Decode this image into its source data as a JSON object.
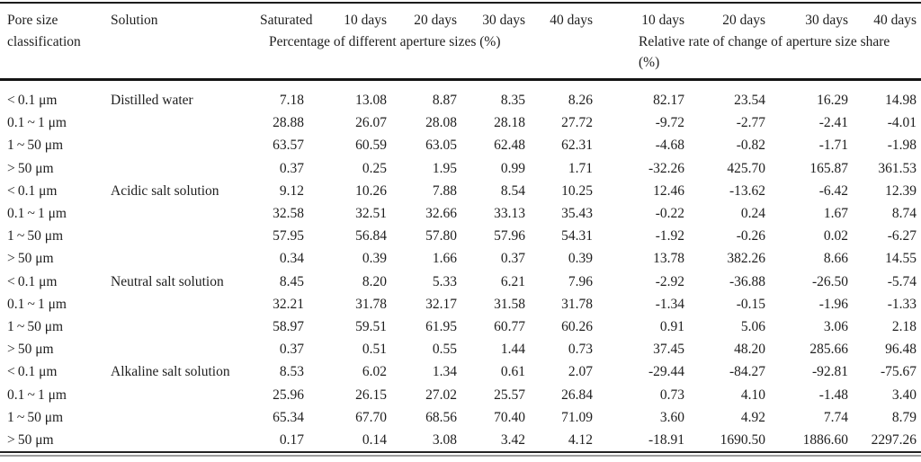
{
  "table": {
    "header": {
      "pore_size": "Pore size classification",
      "solution": "Solution",
      "time_cols": [
        "Saturated",
        "10 days",
        "20 days",
        "30 days",
        "40 days",
        "10 days",
        "20 days",
        "30 days",
        "40 days"
      ],
      "group1_label": "Percentage of different aperture sizes (%)",
      "group2_label": "Relative rate of change of aperture size share (%)"
    },
    "rows": [
      {
        "pore": "< 0.1 μm",
        "solution": "Distilled water",
        "values": [
          "7.18",
          "13.08",
          "8.87",
          "8.35",
          "8.26",
          "82.17",
          "23.54",
          "16.29",
          "14.98"
        ]
      },
      {
        "pore": "0.1 ~ 1 μm",
        "solution": "",
        "values": [
          "28.88",
          "26.07",
          "28.08",
          "28.18",
          "27.72",
          "-9.72",
          "-2.77",
          "-2.41",
          "-4.01"
        ]
      },
      {
        "pore": "1 ~ 50 μm",
        "solution": "",
        "values": [
          "63.57",
          "60.59",
          "63.05",
          "62.48",
          "62.31",
          "-4.68",
          "-0.82",
          "-1.71",
          "-1.98"
        ]
      },
      {
        "pore": "> 50 μm",
        "solution": "",
        "values": [
          "0.37",
          "0.25",
          "1.95",
          "0.99",
          "1.71",
          "-32.26",
          "425.70",
          "165.87",
          "361.53"
        ]
      },
      {
        "pore": "< 0.1 μm",
        "solution": "Acidic salt solution",
        "values": [
          "9.12",
          "10.26",
          "7.88",
          "8.54",
          "10.25",
          "12.46",
          "-13.62",
          "-6.42",
          "12.39"
        ]
      },
      {
        "pore": "0.1 ~ 1 μm",
        "solution": "",
        "values": [
          "32.58",
          "32.51",
          "32.66",
          "33.13",
          "35.43",
          "-0.22",
          "0.24",
          "1.67",
          "8.74"
        ]
      },
      {
        "pore": "1 ~ 50 μm",
        "solution": "",
        "values": [
          "57.95",
          "56.84",
          "57.80",
          "57.96",
          "54.31",
          "-1.92",
          "-0.26",
          "0.02",
          "-6.27"
        ]
      },
      {
        "pore": "> 50 μm",
        "solution": "",
        "values": [
          "0.34",
          "0.39",
          "1.66",
          "0.37",
          "0.39",
          "13.78",
          "382.26",
          "8.66",
          "14.55"
        ]
      },
      {
        "pore": "< 0.1 μm",
        "solution": "Neutral salt solution",
        "values": [
          "8.45",
          "8.20",
          "5.33",
          "6.21",
          "7.96",
          "-2.92",
          "-36.88",
          "-26.50",
          "-5.74"
        ]
      },
      {
        "pore": "0.1 ~ 1 μm",
        "solution": "",
        "values": [
          "32.21",
          "31.78",
          "32.17",
          "31.58",
          "31.78",
          "-1.34",
          "-0.15",
          "-1.96",
          "-1.33"
        ]
      },
      {
        "pore": "1 ~ 50 μm",
        "solution": "",
        "values": [
          "58.97",
          "59.51",
          "61.95",
          "60.77",
          "60.26",
          "0.91",
          "5.06",
          "3.06",
          "2.18"
        ]
      },
      {
        "pore": "> 50 μm",
        "solution": "",
        "values": [
          "0.37",
          "0.51",
          "0.55",
          "1.44",
          "0.73",
          "37.45",
          "48.20",
          "285.66",
          "96.48"
        ]
      },
      {
        "pore": "< 0.1 μm",
        "solution": "Alkaline salt solution",
        "values": [
          "8.53",
          "6.02",
          "1.34",
          "0.61",
          "2.07",
          "-29.44",
          "-84.27",
          "-92.81",
          "-75.67"
        ]
      },
      {
        "pore": "0.1 ~ 1 μm",
        "solution": "",
        "values": [
          "25.96",
          "26.15",
          "27.02",
          "25.57",
          "26.84",
          "0.73",
          "4.10",
          "-1.48",
          "3.40"
        ]
      },
      {
        "pore": "1 ~ 50 μm",
        "solution": "",
        "values": [
          "65.34",
          "67.70",
          "68.56",
          "70.40",
          "71.09",
          "3.60",
          "4.92",
          "7.74",
          "8.79"
        ]
      },
      {
        "pore": "> 50 μm",
        "solution": "",
        "values": [
          "0.17",
          "0.14",
          "3.08",
          "3.42",
          "4.12",
          "-18.91",
          "1690.50",
          "1886.60",
          "2297.26"
        ]
      }
    ]
  }
}
